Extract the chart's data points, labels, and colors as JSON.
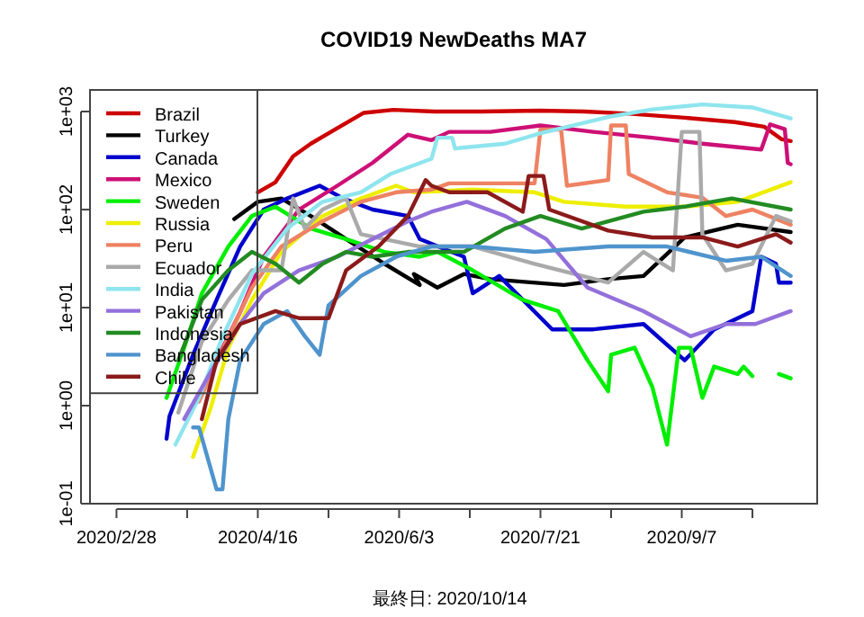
{
  "chart_data": {
    "type": "line",
    "title": "COVID19 NewDeaths MA7",
    "log": "y",
    "grid": false,
    "legend": "top left",
    "line_style": "solid",
    "marker": "none",
    "xlim": [
      "2020-02-19",
      "2020-10-23"
    ],
    "ylim": [
      0.1,
      1660
    ],
    "xticks": [
      {
        "value": "2020-02-28",
        "label": "2020/2/28"
      },
      {
        "value": "2020-03-23",
        "label": null
      },
      {
        "value": "2020-04-16",
        "label": "2020/4/16"
      },
      {
        "value": "2020-05-10",
        "label": null
      },
      {
        "value": "2020-06-03",
        "label": "2020/6/3"
      },
      {
        "value": "2020-06-27",
        "label": null
      },
      {
        "value": "2020-07-21",
        "label": "2020/7/21"
      },
      {
        "value": "2020-08-14",
        "label": null
      },
      {
        "value": "2020-09-07",
        "label": "2020/9/7"
      },
      {
        "value": "2020-10-01",
        "label": null
      }
    ],
    "yticks": [
      {
        "value": 0.1,
        "label": "1e-01"
      },
      {
        "value": 1,
        "label": "1e+00"
      },
      {
        "value": 10,
        "label": "1e+01"
      },
      {
        "value": 100,
        "label": "1e+02"
      },
      {
        "value": 1000,
        "label": "1e+03"
      }
    ],
    "annotations": [
      "最終日: 2020/10/14"
    ],
    "series": [
      {
        "name": "Brazil",
        "color": "#cd0000",
        "x": [
          "2020-04-16",
          "2020-04-22",
          "2020-04-28",
          "2020-05-04",
          "2020-05-12",
          "2020-05-22",
          "2020-06-01",
          "2020-06-15",
          "2020-07-01",
          "2020-07-21",
          "2020-08-05",
          "2020-08-20",
          "2020-09-07",
          "2020-09-25",
          "2020-10-05",
          "2020-10-11",
          "2020-10-14"
        ],
        "values": [
          150,
          190,
          350,
          470,
          650,
          970,
          1040,
          1000,
          1000,
          1020,
          1000,
          950,
          870,
          780,
          700,
          520,
          500
        ]
      },
      {
        "name": "Turkey",
        "color": "#000000",
        "x": [
          "2020-04-08",
          "2020-04-16",
          "2020-04-24",
          "2020-05-04",
          "2020-05-16",
          "2020-05-29",
          "2020-06-10",
          "2020-06-08",
          "2020-06-16",
          "2020-06-25",
          "2020-07-04",
          "2020-07-29",
          "2020-08-13",
          "2020-08-25",
          "2020-09-08",
          "2020-09-26",
          "2020-10-14"
        ],
        "values": [
          80,
          120,
          130,
          86,
          50,
          28,
          17,
          22,
          16,
          22,
          19.5,
          17,
          19.5,
          21,
          52,
          70,
          59
        ]
      },
      {
        "name": "Canada",
        "color": "#0000cd",
        "x": [
          "2020-03-16",
          "2020-03-17",
          "2020-03-25",
          "2020-04-02",
          "2020-04-10",
          "2020-04-18",
          "2020-04-26",
          "2020-05-07",
          "2020-05-15",
          "2020-05-25",
          "2020-06-06",
          "2020-06-10",
          "2020-06-25",
          "2020-06-28",
          "2020-07-07",
          "2020-07-25",
          "2020-08-08",
          "2020-08-25",
          "2020-09-08",
          "2020-09-18",
          "2020-10-01",
          "2020-10-04",
          "2020-10-09",
          "2020-10-10",
          "2020-10-14"
        ],
        "values": [
          0.46,
          0.78,
          3.3,
          12,
          42,
          100,
          130,
          175,
          130,
          100,
          86,
          50,
          33,
          14,
          21,
          6,
          6,
          6.8,
          2.9,
          6,
          9.2,
          33,
          28,
          18,
          18
        ]
      },
      {
        "name": "Mexico",
        "color": "#cd1076",
        "x": [
          "2020-03-25",
          "2020-04-02",
          "2020-04-10",
          "2020-04-18",
          "2020-04-30",
          "2020-05-13",
          "2020-05-25",
          "2020-06-06",
          "2020-06-14",
          "2020-06-20",
          "2020-07-04",
          "2020-07-21",
          "2020-08-08",
          "2020-08-28",
          "2020-09-14",
          "2020-10-04",
          "2020-10-07",
          "2020-10-12",
          "2020-10-13",
          "2020-10-14"
        ],
        "values": [
          0.95,
          2.9,
          9,
          33,
          100,
          175,
          300,
          580,
          510,
          620,
          620,
          720,
          620,
          540,
          470,
          410,
          740,
          660,
          300,
          290
        ]
      },
      {
        "name": "Sweden",
        "color": "#00ee00",
        "x": [
          "2020-03-16",
          "2020-03-22",
          "2020-03-28",
          "2020-04-06",
          "2020-04-14",
          "2020-04-22",
          "2020-05-04",
          "2020-05-16",
          "2020-05-29",
          "2020-06-10",
          "2020-06-16",
          "2020-06-28",
          "2020-07-15",
          "2020-07-27",
          "2020-08-06",
          "2020-08-13",
          "2020-08-14",
          "2020-08-22",
          "2020-08-28",
          "2020-09-02",
          "2020-09-06",
          "2020-09-10",
          "2020-09-14",
          "2020-09-18",
          "2020-09-26",
          "2020-09-28",
          "2020-10-01",
          "2020-10-06",
          "2020-10-10",
          "2020-10-14"
        ],
        "values": [
          1.2,
          3.9,
          14,
          42,
          86,
          107,
          64,
          50,
          37,
          33,
          37,
          24,
          12,
          9.2,
          2.9,
          1.4,
          3.3,
          3.9,
          1.55,
          0.4,
          3.9,
          3.9,
          1.2,
          2.5,
          2.1,
          2.5,
          2.0,
          null,
          2.1,
          1.9
        ]
      },
      {
        "name": "Russia",
        "color": "#eeee00",
        "x": [
          "2020-03-25",
          "2020-03-31",
          "2020-04-06",
          "2020-04-14",
          "2020-04-24",
          "2020-05-08",
          "2020-05-21",
          "2020-06-02",
          "2020-06-08",
          "2020-06-28",
          "2020-07-19",
          "2020-07-29",
          "2020-08-19",
          "2020-09-08",
          "2020-09-26",
          "2020-10-14"
        ],
        "values": [
          0.3,
          0.95,
          3.9,
          12,
          37,
          86,
          130,
          175,
          150,
          160,
          150,
          120,
          107,
          107,
          120,
          190
        ]
      },
      {
        "name": "Peru",
        "color": "#ee8262",
        "x": [
          "2020-03-27",
          "2020-04-06",
          "2020-04-14",
          "2020-04-24",
          "2020-05-08",
          "2020-05-21",
          "2020-06-02",
          "2020-06-14",
          "2020-06-20",
          "2020-07-19",
          "2020-07-21",
          "2020-07-28",
          "2020-07-30",
          "2020-08-13",
          "2020-08-14",
          "2020-08-19",
          "2020-08-20",
          "2020-09-02",
          "2020-09-14",
          "2020-09-22",
          "2020-10-01",
          "2020-10-14"
        ],
        "values": [
          1.1,
          5,
          16,
          42,
          76,
          120,
          150,
          160,
          185,
          185,
          655,
          655,
          175,
          200,
          720,
          720,
          230,
          150,
          132,
          86,
          100,
          70
        ]
      },
      {
        "name": "Ecuador",
        "color": "#aaaaaa",
        "x": [
          "2020-03-20",
          "2020-03-28",
          "2020-04-06",
          "2020-04-14",
          "2020-04-24",
          "2020-04-28",
          "2020-05-02",
          "2020-05-08",
          "2020-05-16",
          "2020-05-21",
          "2020-05-29",
          "2020-06-10",
          "2020-06-28",
          "2020-07-19",
          "2020-08-13",
          "2020-08-25",
          "2020-09-04",
          "2020-09-07",
          "2020-09-13",
          "2020-09-14",
          "2020-09-22",
          "2020-10-01",
          "2020-10-09",
          "2020-10-14"
        ],
        "values": [
          0.85,
          4.5,
          12,
          24,
          24,
          130,
          64,
          100,
          130,
          56,
          50,
          42,
          42,
          28,
          18,
          37,
          24,
          620,
          620,
          56,
          24,
          28,
          86,
          76
        ]
      },
      {
        "name": "India",
        "color": "#8ee5ee",
        "x": [
          "2020-03-19",
          "2020-03-27",
          "2020-04-04",
          "2020-04-14",
          "2020-04-26",
          "2020-05-08",
          "2020-05-21",
          "2020-05-31",
          "2020-06-14",
          "2020-06-16",
          "2020-06-21",
          "2020-06-22",
          "2020-07-09",
          "2020-07-21",
          "2020-08-13",
          "2020-08-28",
          "2020-09-14",
          "2020-10-01",
          "2020-10-14"
        ],
        "values": [
          0.4,
          1.2,
          5,
          22,
          64,
          120,
          150,
          230,
          330,
          540,
          540,
          420,
          470,
          600,
          880,
          1050,
          1180,
          1100,
          850
        ]
      },
      {
        "name": "Pakistan",
        "color": "#9370db",
        "x": [
          "2020-03-22",
          "2020-03-31",
          "2020-04-10",
          "2020-04-18",
          "2020-04-30",
          "2020-05-13",
          "2020-05-25",
          "2020-06-06",
          "2020-06-14",
          "2020-06-26",
          "2020-07-09",
          "2020-07-23",
          "2020-08-06",
          "2020-08-25",
          "2020-09-10",
          "2020-09-22",
          "2020-10-02",
          "2020-10-14"
        ],
        "values": [
          0.73,
          2.2,
          6.8,
          14,
          24,
          33,
          50,
          76,
          95,
          120,
          86,
          50,
          16,
          9.2,
          5.1,
          6.8,
          6.8,
          9.2
        ]
      },
      {
        "name": "Indonesia",
        "color": "#228b22",
        "x": [
          "2020-03-20",
          "2020-03-28",
          "2020-04-06",
          "2020-04-14",
          "2020-04-22",
          "2020-04-30",
          "2020-05-08",
          "2020-05-16",
          "2020-05-25",
          "2020-06-06",
          "2020-06-25",
          "2020-07-09",
          "2020-07-21",
          "2020-08-04",
          "2020-08-25",
          "2020-09-08",
          "2020-09-24",
          "2020-10-14"
        ],
        "values": [
          2.9,
          12,
          24,
          37,
          28,
          18,
          28,
          37,
          33,
          37,
          37,
          64,
          86,
          64,
          95,
          107,
          130,
          100
        ]
      },
      {
        "name": "Bangladesh",
        "color": "#4f94cd",
        "x": [
          "2020-03-25",
          "2020-03-27",
          "2020-04-02",
          "2020-04-04",
          "2020-04-06",
          "2020-04-10",
          "2020-04-18",
          "2020-04-26",
          "2020-05-02",
          "2020-05-07",
          "2020-05-10",
          "2020-05-21",
          "2020-06-02",
          "2020-06-14",
          "2020-06-28",
          "2020-07-19",
          "2020-08-13",
          "2020-09-02",
          "2020-09-22",
          "2020-10-04",
          "2020-10-14"
        ],
        "values": [
          0.6,
          0.6,
          0.14,
          0.14,
          0.73,
          2.9,
          6.8,
          9.2,
          5.1,
          3.3,
          10.5,
          21,
          33,
          42,
          42,
          37,
          42,
          42,
          30,
          33,
          21
        ]
      },
      {
        "name": "Chile",
        "color": "#8b1a1a",
        "x": [
          "2020-03-28",
          "2020-04-02",
          "2020-04-10",
          "2020-04-22",
          "2020-04-30",
          "2020-05-10",
          "2020-05-16",
          "2020-05-27",
          "2020-06-06",
          "2020-06-12",
          "2020-06-14",
          "2020-06-20",
          "2020-07-03",
          "2020-07-15",
          "2020-07-17",
          "2020-07-22",
          "2020-07-24",
          "2020-08-13",
          "2020-08-28",
          "2020-09-14",
          "2020-09-26",
          "2020-10-09",
          "2020-10-14"
        ],
        "values": [
          0.73,
          2.9,
          6.8,
          9.2,
          7.8,
          7.8,
          24,
          42,
          86,
          200,
          175,
          150,
          150,
          95,
          220,
          220,
          100,
          61,
          52,
          52,
          42,
          56,
          46
        ]
      }
    ]
  }
}
